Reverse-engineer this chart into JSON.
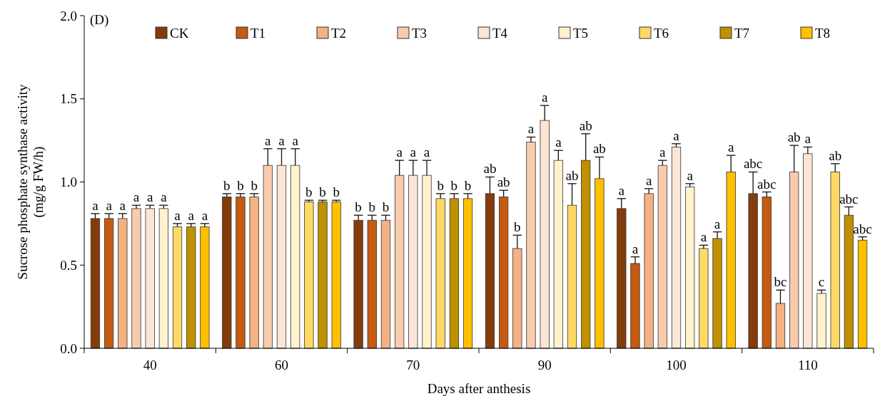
{
  "chart_data": {
    "type": "bar",
    "title": "(D)",
    "xlabel": "Days after anthesis",
    "ylabel": "Sucrose phosphate synthase activity\n(mg/g FW/h)",
    "categories": [
      "40",
      "60",
      "70",
      "90",
      "100",
      "110"
    ],
    "ylim": [
      0,
      2
    ],
    "yticks": [
      {
        "value": 0,
        "label": "0.0"
      },
      {
        "value": 0.5,
        "label": "0.5"
      },
      {
        "value": 1,
        "label": "1.0"
      },
      {
        "value": 1.5,
        "label": "1.5"
      },
      {
        "value": 2,
        "label": "2.0"
      }
    ],
    "legend": "top",
    "grid": false,
    "series": [
      {
        "name": "CK",
        "color": "#843c0c",
        "values": [
          0.78,
          0.91,
          0.77,
          0.93,
          0.84,
          0.93
        ],
        "errors": [
          0.03,
          0.02,
          0.03,
          0.1,
          0.06,
          0.13
        ],
        "value_labels": [
          "a",
          "b",
          "b",
          "ab",
          "a",
          "abc"
        ]
      },
      {
        "name": "T1",
        "color": "#c55a11",
        "values": [
          0.78,
          0.91,
          0.77,
          0.91,
          0.51,
          0.91
        ],
        "errors": [
          0.03,
          0.02,
          0.03,
          0.04,
          0.04,
          0.03
        ],
        "value_labels": [
          "a",
          "b",
          "b",
          "ab",
          "a",
          "abc"
        ]
      },
      {
        "name": "T2",
        "color": "#f4b183",
        "values": [
          0.78,
          0.91,
          0.77,
          0.6,
          0.93,
          0.27
        ],
        "errors": [
          0.03,
          0.02,
          0.03,
          0.08,
          0.03,
          0.08
        ],
        "value_labels": [
          "a",
          "b",
          "b",
          "b",
          "a",
          "bc"
        ]
      },
      {
        "name": "T3",
        "color": "#f8cbad",
        "values": [
          0.84,
          1.1,
          1.04,
          1.24,
          1.1,
          1.06
        ],
        "errors": [
          0.02,
          0.1,
          0.09,
          0.03,
          0.03,
          0.16
        ],
        "value_labels": [
          "a",
          "a",
          "a",
          "a",
          "a",
          "ab"
        ]
      },
      {
        "name": "T4",
        "color": "#fbe5d6",
        "values": [
          0.84,
          1.1,
          1.04,
          1.37,
          1.21,
          1.17
        ],
        "errors": [
          0.02,
          0.1,
          0.09,
          0.09,
          0.02,
          0.04
        ],
        "value_labels": [
          "a",
          "a",
          "a",
          "a",
          "a",
          "a"
        ]
      },
      {
        "name": "T5",
        "color": "#fff2cc",
        "values": [
          0.84,
          1.1,
          1.04,
          1.13,
          0.97,
          0.33
        ],
        "errors": [
          0.02,
          0.1,
          0.09,
          0.06,
          0.02,
          0.02
        ],
        "value_labels": [
          "a",
          "a",
          "a",
          "a",
          "a",
          "c"
        ]
      },
      {
        "name": "T6",
        "color": "#ffd966",
        "values": [
          0.73,
          0.88,
          0.9,
          0.86,
          0.6,
          1.06
        ],
        "errors": [
          0.02,
          0.01,
          0.03,
          0.13,
          0.02,
          0.05
        ],
        "value_labels": [
          "a",
          "b",
          "b",
          "ab",
          "a",
          "ab"
        ]
      },
      {
        "name": "T7",
        "color": "#bf9000",
        "values": [
          0.73,
          0.88,
          0.9,
          1.13,
          0.66,
          0.8
        ],
        "errors": [
          0.02,
          0.01,
          0.03,
          0.16,
          0.04,
          0.05
        ],
        "value_labels": [
          "a",
          "b",
          "b",
          "ab",
          "a",
          "abc"
        ]
      },
      {
        "name": "T8",
        "color": "#ffc000",
        "values": [
          0.73,
          0.88,
          0.9,
          1.02,
          1.06,
          0.65
        ],
        "errors": [
          0.02,
          0.01,
          0.03,
          0.13,
          0.1,
          0.02
        ],
        "value_labels": [
          "a",
          "b",
          "b",
          "ab",
          "a",
          "abc"
        ]
      }
    ]
  }
}
